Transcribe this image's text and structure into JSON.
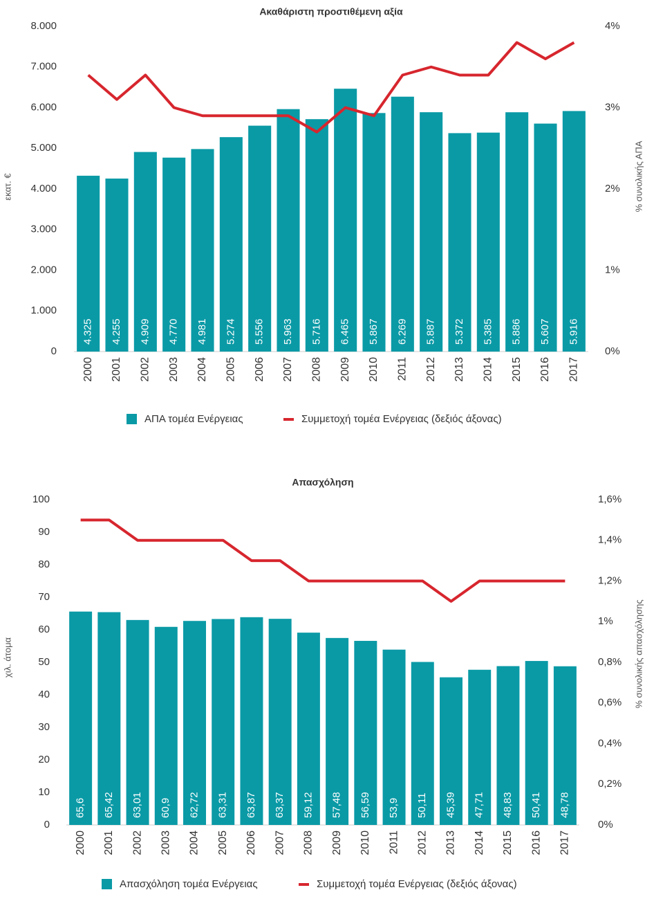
{
  "chart_data": [
    {
      "type": "bar",
      "title": "Ακαθάριστη προστιθέμενη αξία",
      "ylabel": "εκατ. €",
      "y2label": "% συνολικής ΑΠΑ",
      "categories": [
        "2000",
        "2001",
        "2002",
        "2003",
        "2004",
        "2005",
        "2006",
        "2007",
        "2008",
        "2009",
        "2010",
        "2011",
        "2012",
        "2013",
        "2014",
        "2015",
        "2016",
        "2017"
      ],
      "series": [
        {
          "name": "ΑΠΑ τομέα Ενέργειας",
          "type": "bar",
          "color": "#0a9aa6",
          "values": [
            4325,
            4255,
            4909,
            4770,
            4981,
            5274,
            5556,
            5963,
            5716,
            6465,
            5867,
            6269,
            5887,
            5372,
            5385,
            5886,
            5607,
            5916
          ],
          "value_labels": [
            "4.325",
            "4.255",
            "4.909",
            "4.770",
            "4.981",
            "5.274",
            "5.556",
            "5.963",
            "5.716",
            "6.465",
            "5.867",
            "6.269",
            "5.887",
            "5.372",
            "5.385",
            "5.886",
            "5.607",
            "5.916"
          ]
        },
        {
          "name": "Συμμετοχή τομέα Ενέργειας (δεξιός άξονας)",
          "type": "line",
          "axis": "y2",
          "color": "#d7262e",
          "values": [
            3.4,
            3.1,
            3.4,
            3.0,
            2.9,
            2.9,
            2.9,
            2.9,
            2.7,
            3.0,
            2.9,
            3.4,
            3.5,
            3.4,
            3.4,
            3.8,
            3.6,
            3.8
          ]
        }
      ],
      "ylim": [
        0,
        8000
      ],
      "yticks": [
        0,
        {
          "value": 1000,
          "label": "1.000"
        },
        {
          "value": 2000,
          "label": "2.000"
        },
        {
          "value": 3000,
          "label": "3.000"
        },
        {
          "value": 4000,
          "label": "4.000"
        },
        {
          "value": 5000,
          "label": "5.000"
        },
        {
          "value": 6000,
          "label": "6.000"
        },
        {
          "value": 7000,
          "label": "7.000"
        },
        {
          "value": 8000,
          "label": "8.000"
        }
      ],
      "y2lim": [
        0,
        4
      ],
      "y2ticks": [
        {
          "value": 0,
          "label": "0%"
        },
        {
          "value": 1,
          "label": "1%"
        },
        {
          "value": 2,
          "label": "2%"
        },
        {
          "value": 3,
          "label": "3%"
        },
        {
          "value": 4,
          "label": "4%"
        }
      ],
      "legend": "bottom"
    },
    {
      "type": "bar",
      "title": "Απασχόληση",
      "ylabel": "χιλ. άτομα",
      "y2label": "% συνολικής απασχόλησης",
      "categories": [
        "2000",
        "2001",
        "2002",
        "2003",
        "2004",
        "2005",
        "2006",
        "2007",
        "2008",
        "2009",
        "2010",
        "2011",
        "2012",
        "2013",
        "2014",
        "2015",
        "2016",
        "2017"
      ],
      "series": [
        {
          "name": "Απασχόληση τομέα Ενέργειας",
          "type": "bar",
          "color": "#0a9aa6",
          "values": [
            65.6,
            65.42,
            63.01,
            60.9,
            62.72,
            63.31,
            63.87,
            63.37,
            59.12,
            57.48,
            56.59,
            53.9,
            50.11,
            45.39,
            47.71,
            48.83,
            50.41,
            48.78
          ],
          "value_labels": [
            "65,6",
            "65,42",
            "63,01",
            "60,9",
            "62,72",
            "63,31",
            "63,87",
            "63,37",
            "59,12",
            "57,48",
            "56,59",
            "53,9",
            "50,11",
            "45,39",
            "47,71",
            "48,83",
            "50,41",
            "48,78"
          ]
        },
        {
          "name": "Συμμετοχή τομέα Ενέργειας (δεξιός άξονας)",
          "type": "line",
          "axis": "y2",
          "color": "#d7262e",
          "values": [
            1.5,
            1.5,
            1.4,
            1.4,
            1.4,
            1.4,
            1.3,
            1.3,
            1.2,
            1.2,
            1.2,
            1.2,
            1.2,
            1.1,
            1.2,
            1.2,
            1.2,
            1.2
          ]
        }
      ],
      "ylim": [
        0,
        100
      ],
      "yticks": [
        0,
        10,
        20,
        30,
        40,
        50,
        60,
        70,
        80,
        90,
        100
      ],
      "y2lim": [
        0,
        1.6
      ],
      "y2ticks": [
        {
          "value": 0,
          "label": "0%"
        },
        {
          "value": 0.2,
          "label": "0,2%"
        },
        {
          "value": 0.4,
          "label": "0,4%"
        },
        {
          "value": 0.6,
          "label": "0,6%"
        },
        {
          "value": 0.8,
          "label": "0,8%"
        },
        {
          "value": 1,
          "label": "1%"
        },
        {
          "value": 1.2,
          "label": "1,2%"
        },
        {
          "value": 1.4,
          "label": "1,4%"
        },
        {
          "value": 1.6,
          "label": "1,6%"
        }
      ],
      "legend": "bottom"
    }
  ]
}
